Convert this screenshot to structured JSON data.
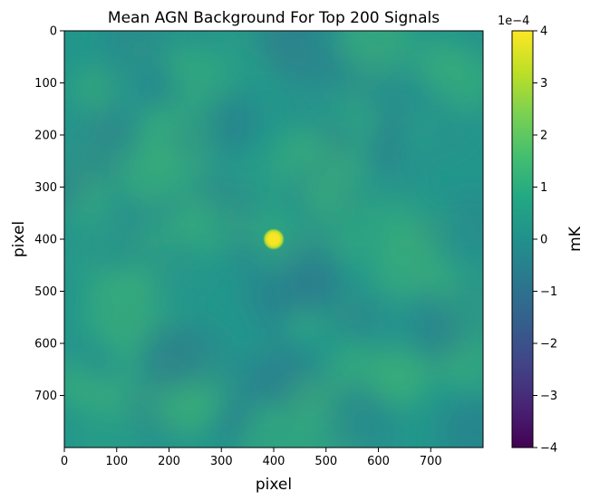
{
  "chart_data": {
    "type": "heatmap",
    "title": "Mean AGN Background For Top 200 Signals",
    "xlabel": "pixel",
    "ylabel": "pixel",
    "xlim": [
      0,
      800
    ],
    "ylim": [
      800,
      0
    ],
    "xticks": [
      0,
      100,
      200,
      300,
      400,
      500,
      600,
      700
    ],
    "yticks": [
      0,
      100,
      200,
      300,
      400,
      500,
      600,
      700
    ],
    "colormap": "viridis",
    "colorbar": {
      "label": "mK",
      "offset_text": "1e−4",
      "range": [
        -4,
        4
      ],
      "ticks": [
        "4",
        "3",
        "2",
        "1",
        "0",
        "−1",
        "−2",
        "−3",
        "−4"
      ]
    },
    "background_level": 0.5,
    "signal": {
      "x": 400,
      "y": 400,
      "value": 4
    }
  }
}
